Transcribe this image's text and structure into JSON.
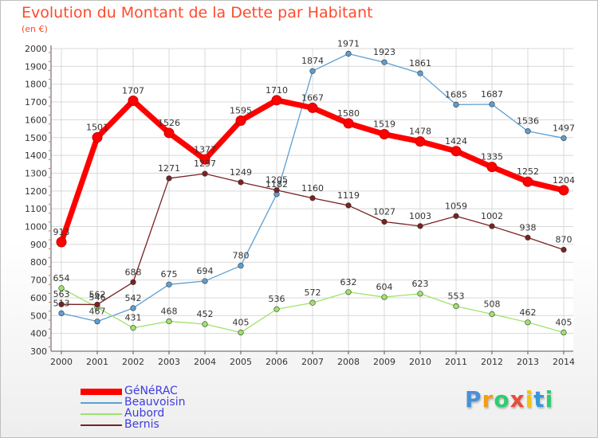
{
  "chart_data": {
    "type": "line",
    "title": "Evolution du Montant de la Dette par Habitant",
    "unit": "(en €)",
    "categories": [
      "2000",
      "2001",
      "2002",
      "2003",
      "2004",
      "2005",
      "2006",
      "2007",
      "2008",
      "2009",
      "2010",
      "2011",
      "2012",
      "2013",
      "2014"
    ],
    "y_ticks": [
      300,
      400,
      500,
      600,
      700,
      800,
      900,
      1000,
      1100,
      1200,
      1300,
      1400,
      1500,
      1600,
      1700,
      1800,
      1900,
      2000
    ],
    "ylim": [
      300,
      2000
    ],
    "grid": true,
    "legend_position": "bottom-left",
    "series": [
      {
        "name": "GéNéRAC",
        "color": "#ff0000",
        "width": 7,
        "values": [
          913,
          1501,
          1707,
          1526,
          1377,
          1595,
          1710,
          1667,
          1580,
          1519,
          1478,
          1424,
          1335,
          1252,
          1204
        ]
      },
      {
        "name": "Beauvoisin",
        "color": "#5d9fd2",
        "width": 1.3,
        "values": [
          513,
          467,
          542,
          675,
          694,
          780,
          1182,
          1874,
          1971,
          1923,
          1861,
          1685,
          1687,
          1536,
          1497
        ]
      },
      {
        "name": "Aubord",
        "color": "#9ee36b",
        "width": 1.3,
        "values": [
          654,
          546,
          431,
          468,
          452,
          405,
          536,
          572,
          632,
          604,
          623,
          553,
          508,
          462,
          405
        ]
      },
      {
        "name": "Bernis",
        "color": "#7a2222",
        "width": 1.3,
        "values": [
          563,
          562,
          688,
          1271,
          1297,
          1249,
          1205,
          1160,
          1119,
          1027,
          1003,
          1059,
          1002,
          938,
          870
        ]
      }
    ]
  },
  "brand": {
    "letters": [
      "P",
      "r",
      "o",
      "x",
      "i",
      "t",
      "i"
    ],
    "colors": [
      "#4a90d9",
      "#f39c12",
      "#2ecc71",
      "#e74c3c",
      "#f1c40f",
      "#3498db",
      "#2ecc71"
    ]
  }
}
